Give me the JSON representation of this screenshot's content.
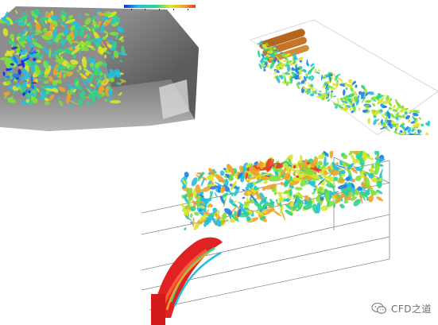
{
  "figure": {
    "description_panels": [
      "top-left",
      "top-right",
      "bottom"
    ],
    "colormap": [
      "#1a2bd8",
      "#1f7de6",
      "#22c0e0",
      "#2ed48a",
      "#7fe03a",
      "#d9e62a",
      "#f0a22a",
      "#e8362a"
    ]
  },
  "watermark": {
    "text": "CFD之道",
    "icon": "wechat-icon"
  }
}
